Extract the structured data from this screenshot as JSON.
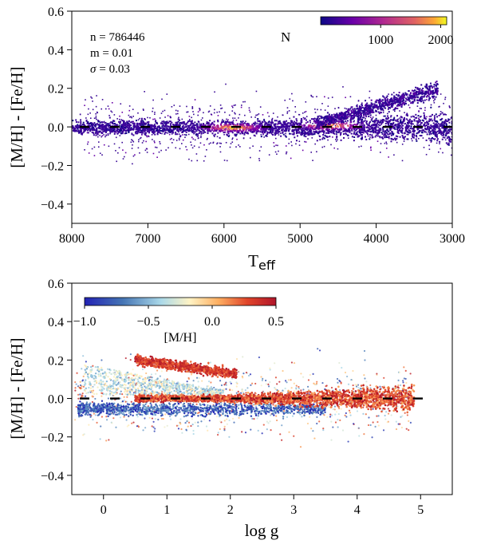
{
  "chart_data": [
    {
      "type": "heatmap",
      "panel": "top",
      "title": "",
      "panel_letter": "N",
      "xlabel_main": "T",
      "xlabel_sub": "eff",
      "ylabel": "[M/H] - [Fe/H]",
      "xlim": [
        8000,
        3000
      ],
      "ylim": [
        -0.5,
        0.6
      ],
      "x_reversed": true,
      "xticks": [
        8000,
        7000,
        6000,
        5000,
        4000,
        3000
      ],
      "xtick_labels": [
        "8000",
        "7000",
        "6000",
        "5000",
        "4000",
        "3000"
      ],
      "yticks": [
        -0.4,
        -0.2,
        0.0,
        0.2,
        0.4,
        0.6
      ],
      "ytick_labels": [
        "−0.4",
        "−0.2",
        "0.0",
        "0.2",
        "0.4",
        "0.6"
      ],
      "stats": {
        "n_text": "n = 786446",
        "m_text": "m = 0.01",
        "sigma_text": "= 0.03",
        "sigma_symbol": "σ"
      },
      "n": 786446,
      "m": 0.01,
      "sigma": 0.03,
      "reference_line": {
        "y": 0.0,
        "style": "dashed",
        "color": "#000000"
      },
      "colorbar": {
        "position": "top-right",
        "colormap": "plasma",
        "range": [
          0,
          2100
        ],
        "ticks": [
          1000,
          2000
        ],
        "tick_labels": [
          "1000",
          "2000"
        ]
      },
      "density_structure": {
        "main_ridge": {
          "x_from": 8000,
          "x_to": 3000,
          "y_center": 0.0
        },
        "peaks": [
          {
            "x": 5900,
            "y": 0.0
          },
          {
            "x": 4600,
            "y": 0.01
          }
        ],
        "giant_branch_upper": {
          "x_from": 4800,
          "x_to": 3200,
          "y_from": 0.02,
          "y_to": 0.2
        }
      }
    },
    {
      "type": "scatter",
      "panel": "bottom",
      "title": "",
      "xlabel": "log g",
      "ylabel": "[M/H] - [Fe/H]",
      "xlim": [
        -0.5,
        5.5
      ],
      "ylim": [
        -0.5,
        0.6
      ],
      "xticks": [
        0,
        1,
        2,
        3,
        4,
        5
      ],
      "xtick_labels": [
        "0",
        "1",
        "2",
        "3",
        "4",
        "5"
      ],
      "yticks": [
        -0.4,
        -0.2,
        0.0,
        0.2,
        0.4,
        0.6
      ],
      "ytick_labels": [
        "−0.4",
        "−0.2",
        "0.0",
        "0.2",
        "0.4",
        "0.6"
      ],
      "reference_line": {
        "y": 0.0,
        "style": "dashed",
        "color": "#000000"
      },
      "colorbar": {
        "position": "top-left",
        "colormap": "RdYlBu_r",
        "label": "[M/H]",
        "range": [
          -1.0,
          0.5
        ],
        "ticks": [
          -1.0,
          -0.5,
          0.0,
          0.5
        ],
        "tick_labels": [
          "−1.0",
          "−0.5",
          "0.0",
          "0.5"
        ]
      },
      "color_trends": {
        "metal_poor_blue_band": {
          "x_from": -0.4,
          "x_to": 3.5,
          "y_center": -0.05
        },
        "metal_rich_red_band": {
          "x_from": 0.5,
          "x_to": 4.9,
          "y_center": 0.0
        },
        "alpha_rich_red_upper_branch": {
          "x_from": 0.5,
          "x_to": 2.1,
          "y_from": 0.2,
          "y_to": 0.13
        }
      }
    }
  ]
}
